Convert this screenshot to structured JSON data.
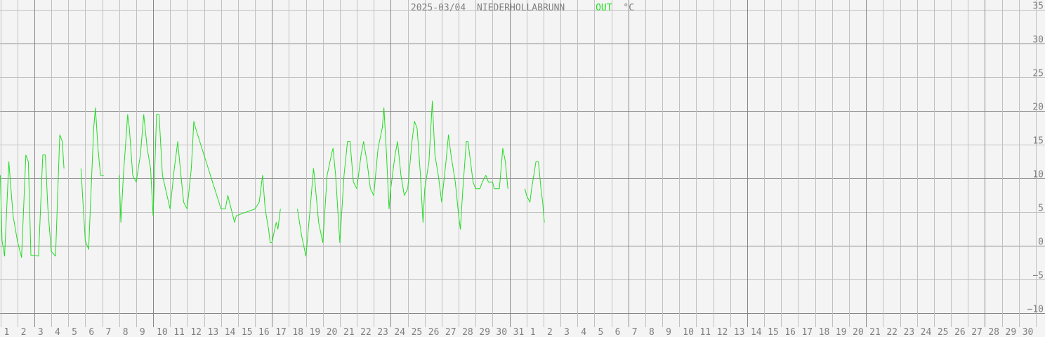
{
  "chart_data": {
    "type": "line",
    "title": {
      "date": "2025-03/04",
      "station": "NIEDERHOLLABRUNN",
      "series": "OUT",
      "unit": "°C"
    },
    "xlabel": "",
    "ylabel": "",
    "ylim": [
      -13.5,
      36.5
    ],
    "yticks": [
      35,
      30,
      25,
      20,
      15,
      10,
      5,
      0,
      -5,
      -10
    ],
    "ytick_labels": [
      "35",
      "30",
      "25",
      "20",
      "15",
      "10",
      "5",
      "0",
      "−5",
      "−10"
    ],
    "x_tick_labels": [
      "1",
      "2",
      "3",
      "4",
      "5",
      "6",
      "7",
      "8",
      "9",
      "10",
      "11",
      "12",
      "13",
      "14",
      "15",
      "16",
      "17",
      "18",
      "19",
      "20",
      "21",
      "22",
      "23",
      "24",
      "25",
      "26",
      "27",
      "28",
      "29",
      "30",
      "31",
      "1",
      "2",
      "3",
      "4",
      "5",
      "6",
      "7",
      "8",
      "9",
      "10",
      "11",
      "12",
      "13",
      "14",
      "15",
      "16",
      "17",
      "18",
      "19",
      "20",
      "21",
      "22",
      "23",
      "24",
      "25",
      "26",
      "27",
      "28",
      "29",
      "30"
    ],
    "x_range_days": [
      0,
      61
    ],
    "grid": true,
    "colors": {
      "series": "#22dd22",
      "title": "#808080",
      "grid_major": "#888888",
      "grid_minor": "#c0c0c0",
      "background": "#f4f4f4"
    },
    "series": [
      {
        "name": "OUT",
        "color": "#22dd22",
        "segments": [
          [
            [
              0.0,
              10.5
            ],
            [
              0.1,
              0.8
            ],
            [
              0.25,
              -1.5
            ],
            [
              0.5,
              12.5
            ],
            [
              0.75,
              4.5
            ],
            [
              1.0,
              0.8
            ],
            [
              1.25,
              -1.7
            ],
            [
              1.5,
              13.5
            ],
            [
              1.65,
              12.5
            ],
            [
              1.8,
              -1.4
            ],
            [
              2.0,
              -1.4
            ],
            [
              2.25,
              -1.5
            ],
            [
              2.5,
              13.5
            ],
            [
              2.65,
              13.5
            ],
            [
              2.8,
              5.5
            ],
            [
              3.0,
              -0.8
            ],
            [
              3.25,
              -1.5
            ],
            [
              3.5,
              16.5
            ],
            [
              3.65,
              15.5
            ],
            [
              3.75,
              11.5
            ]
          ],
          [
            [
              4.75,
              11.5
            ],
            [
              5.0,
              0.8
            ],
            [
              5.2,
              -0.5
            ],
            [
              5.5,
              17.5
            ],
            [
              5.6,
              20.5
            ],
            [
              5.75,
              14.5
            ],
            [
              5.9,
              10.5
            ],
            [
              6.1,
              10.5
            ]
          ],
          [
            [
              7.0,
              10.5
            ],
            [
              7.1,
              3.5
            ],
            [
              7.25,
              10.5
            ],
            [
              7.5,
              19.5
            ],
            [
              7.6,
              17.5
            ],
            [
              7.8,
              10.5
            ],
            [
              8.0,
              9.5
            ],
            [
              8.25,
              13.5
            ],
            [
              8.45,
              19.5
            ],
            [
              8.65,
              14.5
            ],
            [
              8.85,
              11.5
            ],
            [
              9.0,
              4.5
            ],
            [
              9.1,
              11.5
            ],
            [
              9.2,
              19.5
            ],
            [
              9.35,
              19.5
            ],
            [
              9.55,
              10.5
            ],
            [
              10.0,
              5.5
            ],
            [
              10.25,
              11.5
            ],
            [
              10.45,
              15.5
            ],
            [
              10.6,
              11.5
            ],
            [
              10.8,
              6.5
            ],
            [
              11.0,
              5.5
            ],
            [
              11.25,
              11.5
            ],
            [
              11.4,
              18.5
            ],
            [
              11.5,
              17.5
            ],
            [
              11.75,
              15.5
            ],
            [
              12.0,
              13.5
            ],
            [
              12.25,
              11.5
            ],
            [
              12.5,
              9.5
            ],
            [
              12.75,
              7.5
            ],
            [
              13.0,
              5.5
            ],
            [
              13.25,
              5.5
            ],
            [
              13.4,
              7.5
            ],
            [
              13.6,
              5.5
            ],
            [
              13.8,
              3.5
            ],
            [
              13.9,
              4.5
            ],
            [
              15.0,
              5.5
            ],
            [
              15.25,
              6.5
            ],
            [
              15.45,
              10.5
            ],
            [
              15.6,
              5.5
            ],
            [
              15.8,
              2.5
            ],
            [
              15.9,
              0.5
            ],
            [
              16.0,
              0.5
            ],
            [
              16.25,
              3.5
            ],
            [
              16.35,
              2.5
            ],
            [
              16.5,
              5.5
            ]
          ],
          [
            [
              17.5,
              5.5
            ],
            [
              17.75,
              1.5
            ],
            [
              18.0,
              -1.5
            ],
            [
              18.25,
              5.5
            ],
            [
              18.45,
              11.5
            ],
            [
              18.5,
              10.5
            ],
            [
              18.75,
              3.5
            ],
            [
              19.0,
              0.5
            ],
            [
              19.25,
              10.5
            ],
            [
              19.5,
              13.5
            ],
            [
              19.6,
              14.5
            ],
            [
              19.75,
              10.5
            ],
            [
              20.0,
              0.5
            ],
            [
              20.25,
              10.5
            ],
            [
              20.45,
              15.5
            ],
            [
              20.6,
              15.5
            ],
            [
              20.8,
              9.5
            ],
            [
              21.0,
              8.5
            ],
            [
              21.25,
              13.5
            ],
            [
              21.4,
              15.5
            ],
            [
              21.6,
              12.5
            ],
            [
              21.8,
              8.5
            ],
            [
              22.0,
              7.5
            ],
            [
              22.25,
              14.5
            ],
            [
              22.5,
              17.5
            ],
            [
              22.6,
              20.5
            ],
            [
              22.75,
              13.5
            ],
            [
              22.9,
              5.5
            ],
            [
              23.0,
              8.5
            ],
            [
              23.25,
              13.5
            ],
            [
              23.4,
              15.5
            ],
            [
              23.6,
              10.5
            ],
            [
              23.8,
              7.5
            ],
            [
              24.0,
              8.5
            ],
            [
              24.25,
              15.5
            ],
            [
              24.4,
              18.5
            ],
            [
              24.55,
              17.5
            ],
            [
              24.75,
              10.5
            ],
            [
              24.9,
              3.5
            ],
            [
              25.0,
              8.5
            ],
            [
              25.25,
              12.5
            ],
            [
              25.45,
              21.5
            ],
            [
              25.6,
              13.5
            ],
            [
              25.8,
              10.5
            ],
            [
              26.0,
              6.5
            ],
            [
              26.25,
              12.5
            ],
            [
              26.4,
              16.5
            ],
            [
              26.55,
              13.5
            ],
            [
              26.8,
              9.5
            ],
            [
              27.0,
              4.5
            ],
            [
              27.1,
              2.5
            ],
            [
              27.25,
              8.5
            ],
            [
              27.45,
              15.5
            ],
            [
              27.55,
              15.5
            ],
            [
              27.7,
              12.5
            ],
            [
              27.85,
              9.5
            ],
            [
              28.0,
              8.5
            ],
            [
              28.25,
              8.5
            ],
            [
              28.4,
              9.5
            ],
            [
              28.6,
              10.5
            ],
            [
              28.75,
              9.5
            ],
            [
              29.0,
              9.5
            ],
            [
              29.1,
              8.5
            ],
            [
              29.4,
              8.5
            ],
            [
              29.6,
              14.5
            ],
            [
              29.75,
              12.5
            ],
            [
              29.9,
              8.5
            ]
          ],
          [
            [
              30.9,
              8.5
            ],
            [
              31.0,
              7.5
            ],
            [
              31.2,
              6.5
            ],
            [
              31.3,
              8.5
            ],
            [
              31.55,
              12.5
            ],
            [
              31.7,
              12.5
            ],
            [
              31.85,
              8.5
            ],
            [
              31.95,
              6.5
            ],
            [
              32.05,
              3.5
            ]
          ]
        ]
      }
    ]
  }
}
